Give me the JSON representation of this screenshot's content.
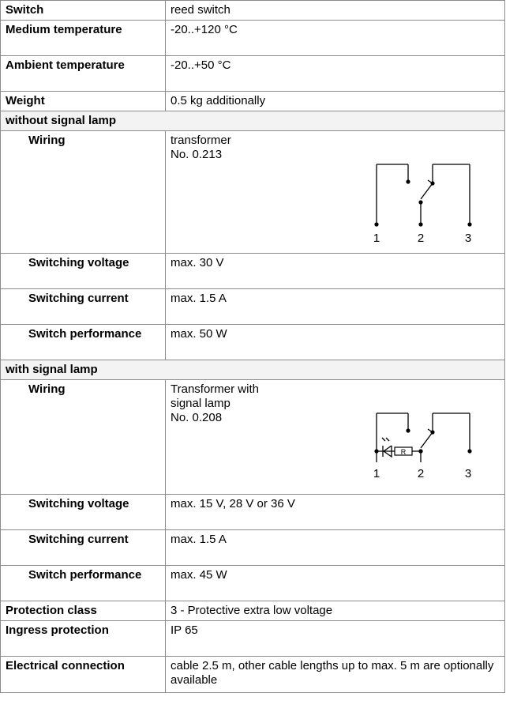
{
  "table": {
    "rows": [
      {
        "label": "Switch",
        "value": [
          "reed switch"
        ]
      },
      {
        "label": "Medium temperature",
        "value": [
          "-20..+120 °C"
        ]
      },
      {
        "label": "Ambient temperature",
        "value": [
          "-20..+50 °C"
        ]
      },
      {
        "label": "Weight",
        "value": [
          "0.5 kg additionally"
        ]
      },
      {
        "section": "without signal lamp"
      },
      {
        "label": "Wiring",
        "value": [
          "transformer",
          "No. 0.213"
        ],
        "sub": true,
        "diagram": {
          "terminals": [
            "1",
            "2",
            "3"
          ]
        }
      },
      {
        "label": "Switching voltage",
        "value": [
          "max. 30 V"
        ],
        "sub": true
      },
      {
        "label": "Switching current",
        "value": [
          "max. 1.5 A"
        ],
        "sub": true
      },
      {
        "label": "Switch performance",
        "value": [
          "max. 50 W"
        ],
        "sub": true
      },
      {
        "section": "with signal lamp"
      },
      {
        "label": "Wiring",
        "value": [
          "Transformer with",
          "signal lamp",
          "No. 0.208"
        ],
        "sub": true,
        "diagram": {
          "terminals": [
            "1",
            "2",
            "3"
          ],
          "resistor": "R"
        }
      },
      {
        "label": "Switching voltage",
        "value": [
          "max. 15 V, 28 V or 36 V"
        ],
        "sub": true
      },
      {
        "label": "Switching current",
        "value": [
          "max. 1.5 A"
        ],
        "sub": true
      },
      {
        "label": "Switch performance",
        "value": [
          "max. 45 W"
        ],
        "sub": true
      },
      {
        "label": "Protection class",
        "value": [
          "3 - Protective extra low voltage"
        ]
      },
      {
        "label": "Ingress protection",
        "value": [
          "IP 65"
        ]
      },
      {
        "label": "Electrical connection",
        "value": [
          "cable 2.5 m, other cable lengths up to max. 5 m are optionally available"
        ]
      }
    ]
  }
}
